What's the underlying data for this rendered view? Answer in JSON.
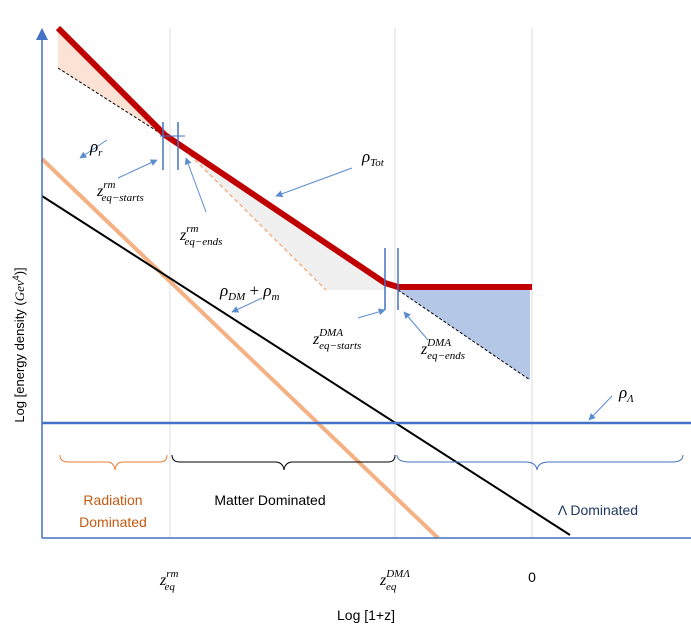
{
  "axes": {
    "xlabel": "Log [1+z]",
    "ylabel_prefix": "Log [energy density (",
    "ylabel_unit": "Gev",
    "ylabel_exp": "4",
    "ylabel_suffix": ")]"
  },
  "x_ticks": [
    {
      "base": "z",
      "sup": "rm",
      "sub": "eq"
    },
    {
      "base": "z",
      "sup": "DMΛ",
      "sub": "eq"
    },
    {
      "plain": "0"
    }
  ],
  "labels": {
    "rho_r": {
      "base": "ρ",
      "sub": "r"
    },
    "rho_tot": {
      "base": "ρ",
      "sub": "Tot"
    },
    "rho_lambda": {
      "base": "ρ",
      "sub": "Λ"
    },
    "rho_dm_m": {
      "base1": "ρ",
      "sub1": "DM",
      "op": " + ",
      "base2": "ρ",
      "sub2": "m"
    },
    "z_rm_starts": {
      "base": "z",
      "sup": "rm",
      "sub": "eq−starts"
    },
    "z_rm_ends": {
      "base": "z",
      "sup": "rm",
      "sub": "eq−ends"
    },
    "z_dma_starts": {
      "base": "z",
      "sup": "DMA",
      "sub": "eq−starts"
    },
    "z_dma_ends": {
      "base": "z",
      "sup": "DMA",
      "sub": "eq−ends"
    }
  },
  "eras": {
    "radiation_line1": "Radiation",
    "radiation_line2": "Dominated",
    "matter": "Matter Dominated",
    "lambda": "Λ Dominated"
  },
  "colors": {
    "total": "#c00000",
    "radiation": "#f4b183",
    "matter": "#000000",
    "lambda": "#4472c4",
    "arrow": "#5b8bd0",
    "fill_peach": "#fbe2d5",
    "fill_grey": "#f0f0f0",
    "fill_blue": "#b4c7e7",
    "radiation_text": "#c55a11",
    "lambda_text": "#1f3864"
  }
}
